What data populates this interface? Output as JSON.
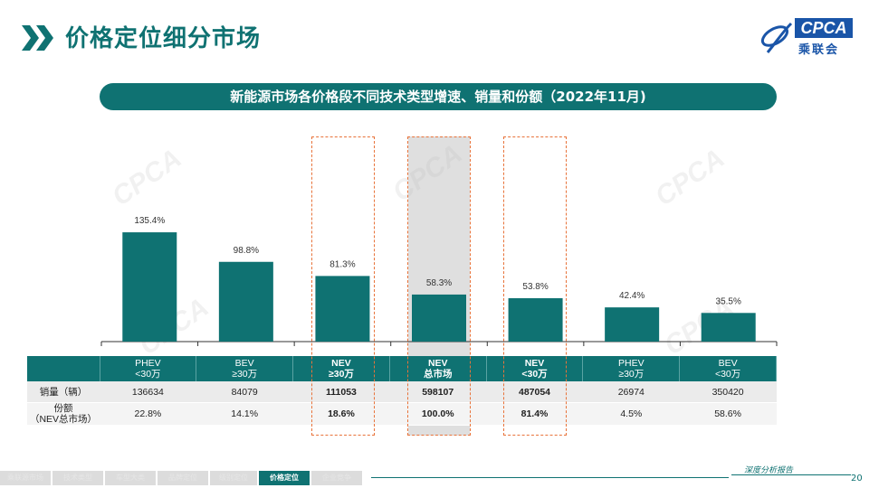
{
  "header": {
    "title": "价格定位细分市场"
  },
  "logo": {
    "text": "CPCA",
    "sub": "乘联会"
  },
  "banner": {
    "text": "新能源市场各价格段不同技术类型增速、销量和份额（2022年11月)"
  },
  "chart_data": {
    "type": "bar",
    "categories": [
      "PHEV\n<30万",
      "BEV\n≥30万",
      "NEV\n≥30万",
      "NEV\n总市场",
      "NEV\n<30万",
      "PHEV\n≥30万",
      "BEV\n<30万"
    ],
    "values": [
      135.4,
      98.8,
      81.3,
      58.3,
      53.8,
      42.4,
      35.5
    ],
    "value_labels": [
      "135.4%",
      "98.8%",
      "81.3%",
      "58.3%",
      "53.8%",
      "42.4%",
      "35.5%"
    ],
    "ylim": [
      0,
      170
    ],
    "bar_color": "#0f7272",
    "highlighted": [
      2,
      3,
      4
    ]
  },
  "table": {
    "headers": [
      {
        "line1": "PHEV",
        "line2": "<30万",
        "bold": false
      },
      {
        "line1": "BEV",
        "line2": "≥30万",
        "bold": false
      },
      {
        "line1": "NEV",
        "line2": "≥30万",
        "bold": true
      },
      {
        "line1": "NEV",
        "line2": "总市场",
        "bold": true
      },
      {
        "line1": "NEV",
        "line2": "<30万",
        "bold": true
      },
      {
        "line1": "PHEV",
        "line2": "≥30万",
        "bold": false
      },
      {
        "line1": "BEV",
        "line2": "<30万",
        "bold": false
      }
    ],
    "rows": [
      {
        "label": "销量（辆）",
        "label2": "",
        "cells": [
          "136634",
          "84079",
          "111053",
          "598107",
          "487054",
          "26974",
          "350420"
        ]
      },
      {
        "label": "份额",
        "label2": "（NEV总市场）",
        "cells": [
          "22.8%",
          "14.1%",
          "18.6%",
          "100.0%",
          "81.4%",
          "4.5%",
          "58.6%"
        ]
      }
    ]
  },
  "footer": {
    "tabs": [
      "乘联源市场",
      "技术类型",
      "车型大类",
      "品牌定位",
      "级别定位",
      "价格定位",
      "企业竞争"
    ],
    "active_tab": "价格定位",
    "note": "深度分析报告",
    "page": "20"
  },
  "colors": {
    "accent": "#0f7272",
    "highlight_border": "#e8733a"
  }
}
